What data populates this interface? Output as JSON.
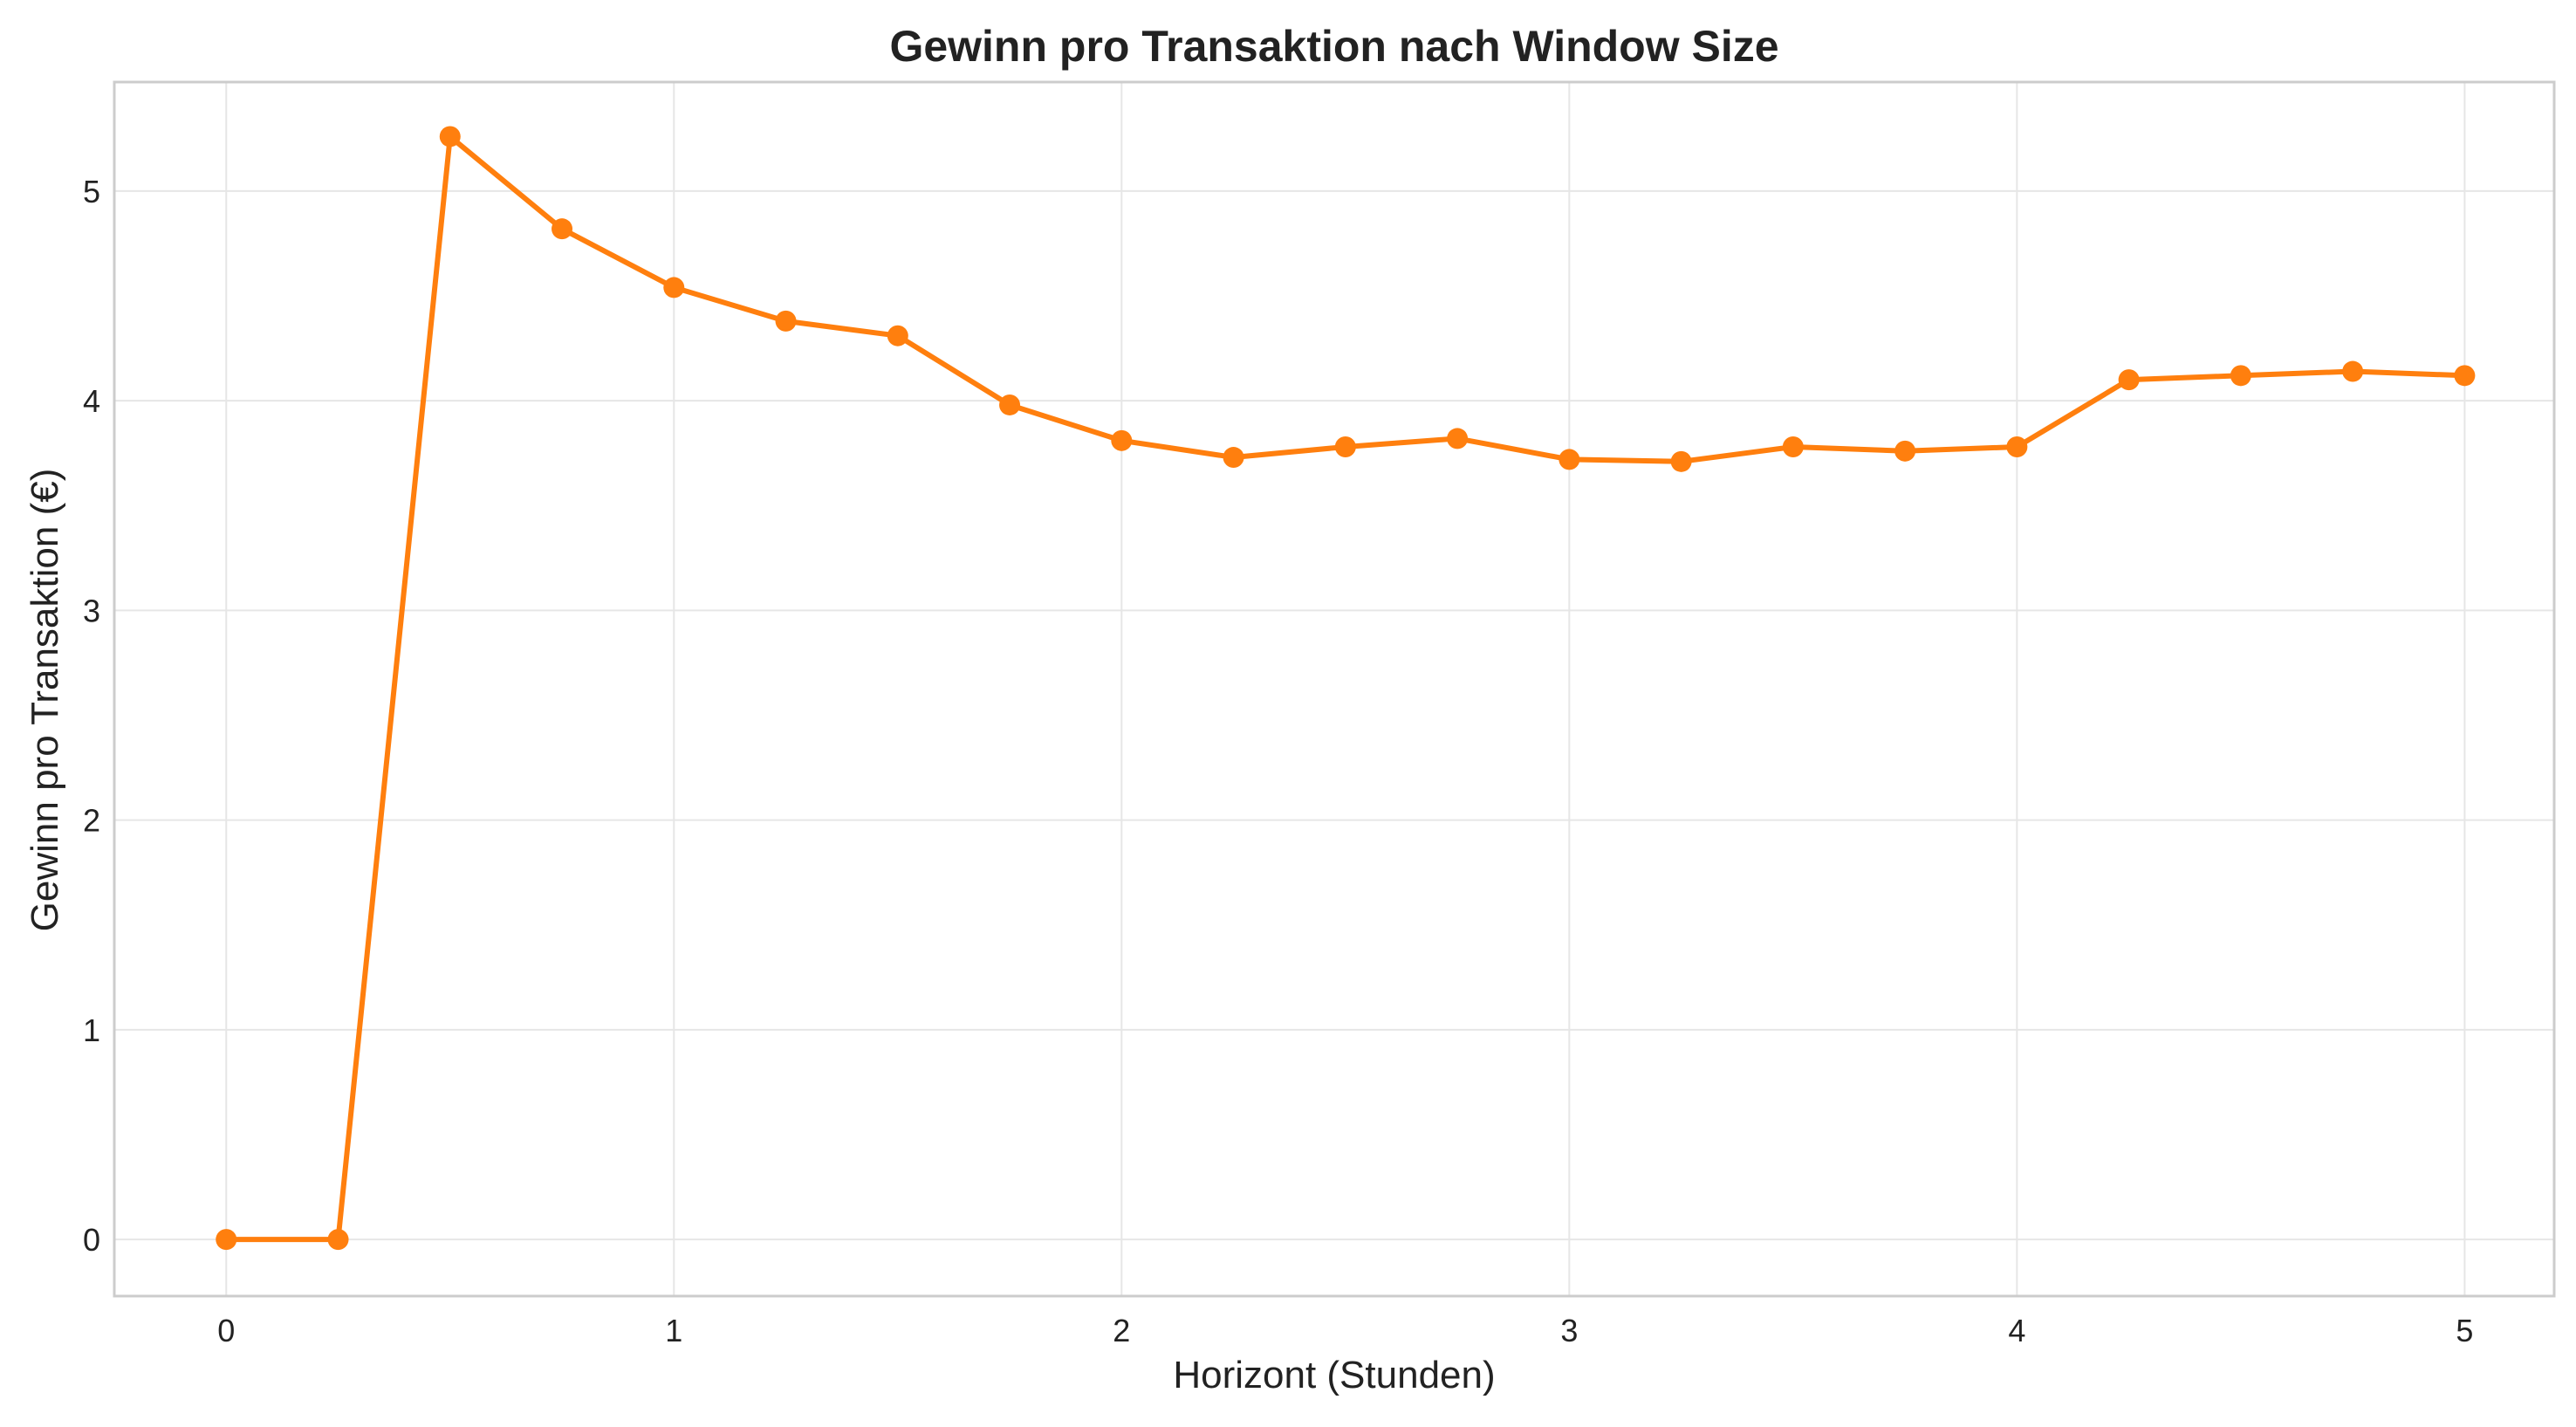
{
  "chart_data": {
    "type": "line",
    "title": "Gewinn pro Transaktion nach Window Size",
    "xlabel": "Horizont (Stunden)",
    "ylabel": "Gewinn pro Transaktion (€)",
    "xlim": [
      -0.25,
      5.2
    ],
    "ylim": [
      -0.27,
      5.52
    ],
    "xticks": [
      0,
      1,
      2,
      3,
      4,
      5
    ],
    "yticks": [
      0,
      1,
      2,
      3,
      4,
      5
    ],
    "grid": true,
    "series": [
      {
        "color": "#ff7f0e",
        "marker": "circle",
        "x": [
          0,
          0.25,
          0.5,
          0.75,
          1.0,
          1.25,
          1.5,
          1.75,
          2.0,
          2.25,
          2.5,
          2.75,
          3.0,
          3.25,
          3.5,
          3.75,
          4.0,
          4.25,
          4.5,
          4.75,
          5.0
        ],
        "y": [
          0.0,
          0.0,
          5.26,
          4.82,
          4.54,
          4.38,
          4.31,
          3.98,
          3.81,
          3.73,
          3.78,
          3.82,
          3.72,
          3.71,
          3.78,
          3.76,
          3.78,
          4.1,
          4.12,
          4.14,
          4.12
        ]
      }
    ]
  }
}
